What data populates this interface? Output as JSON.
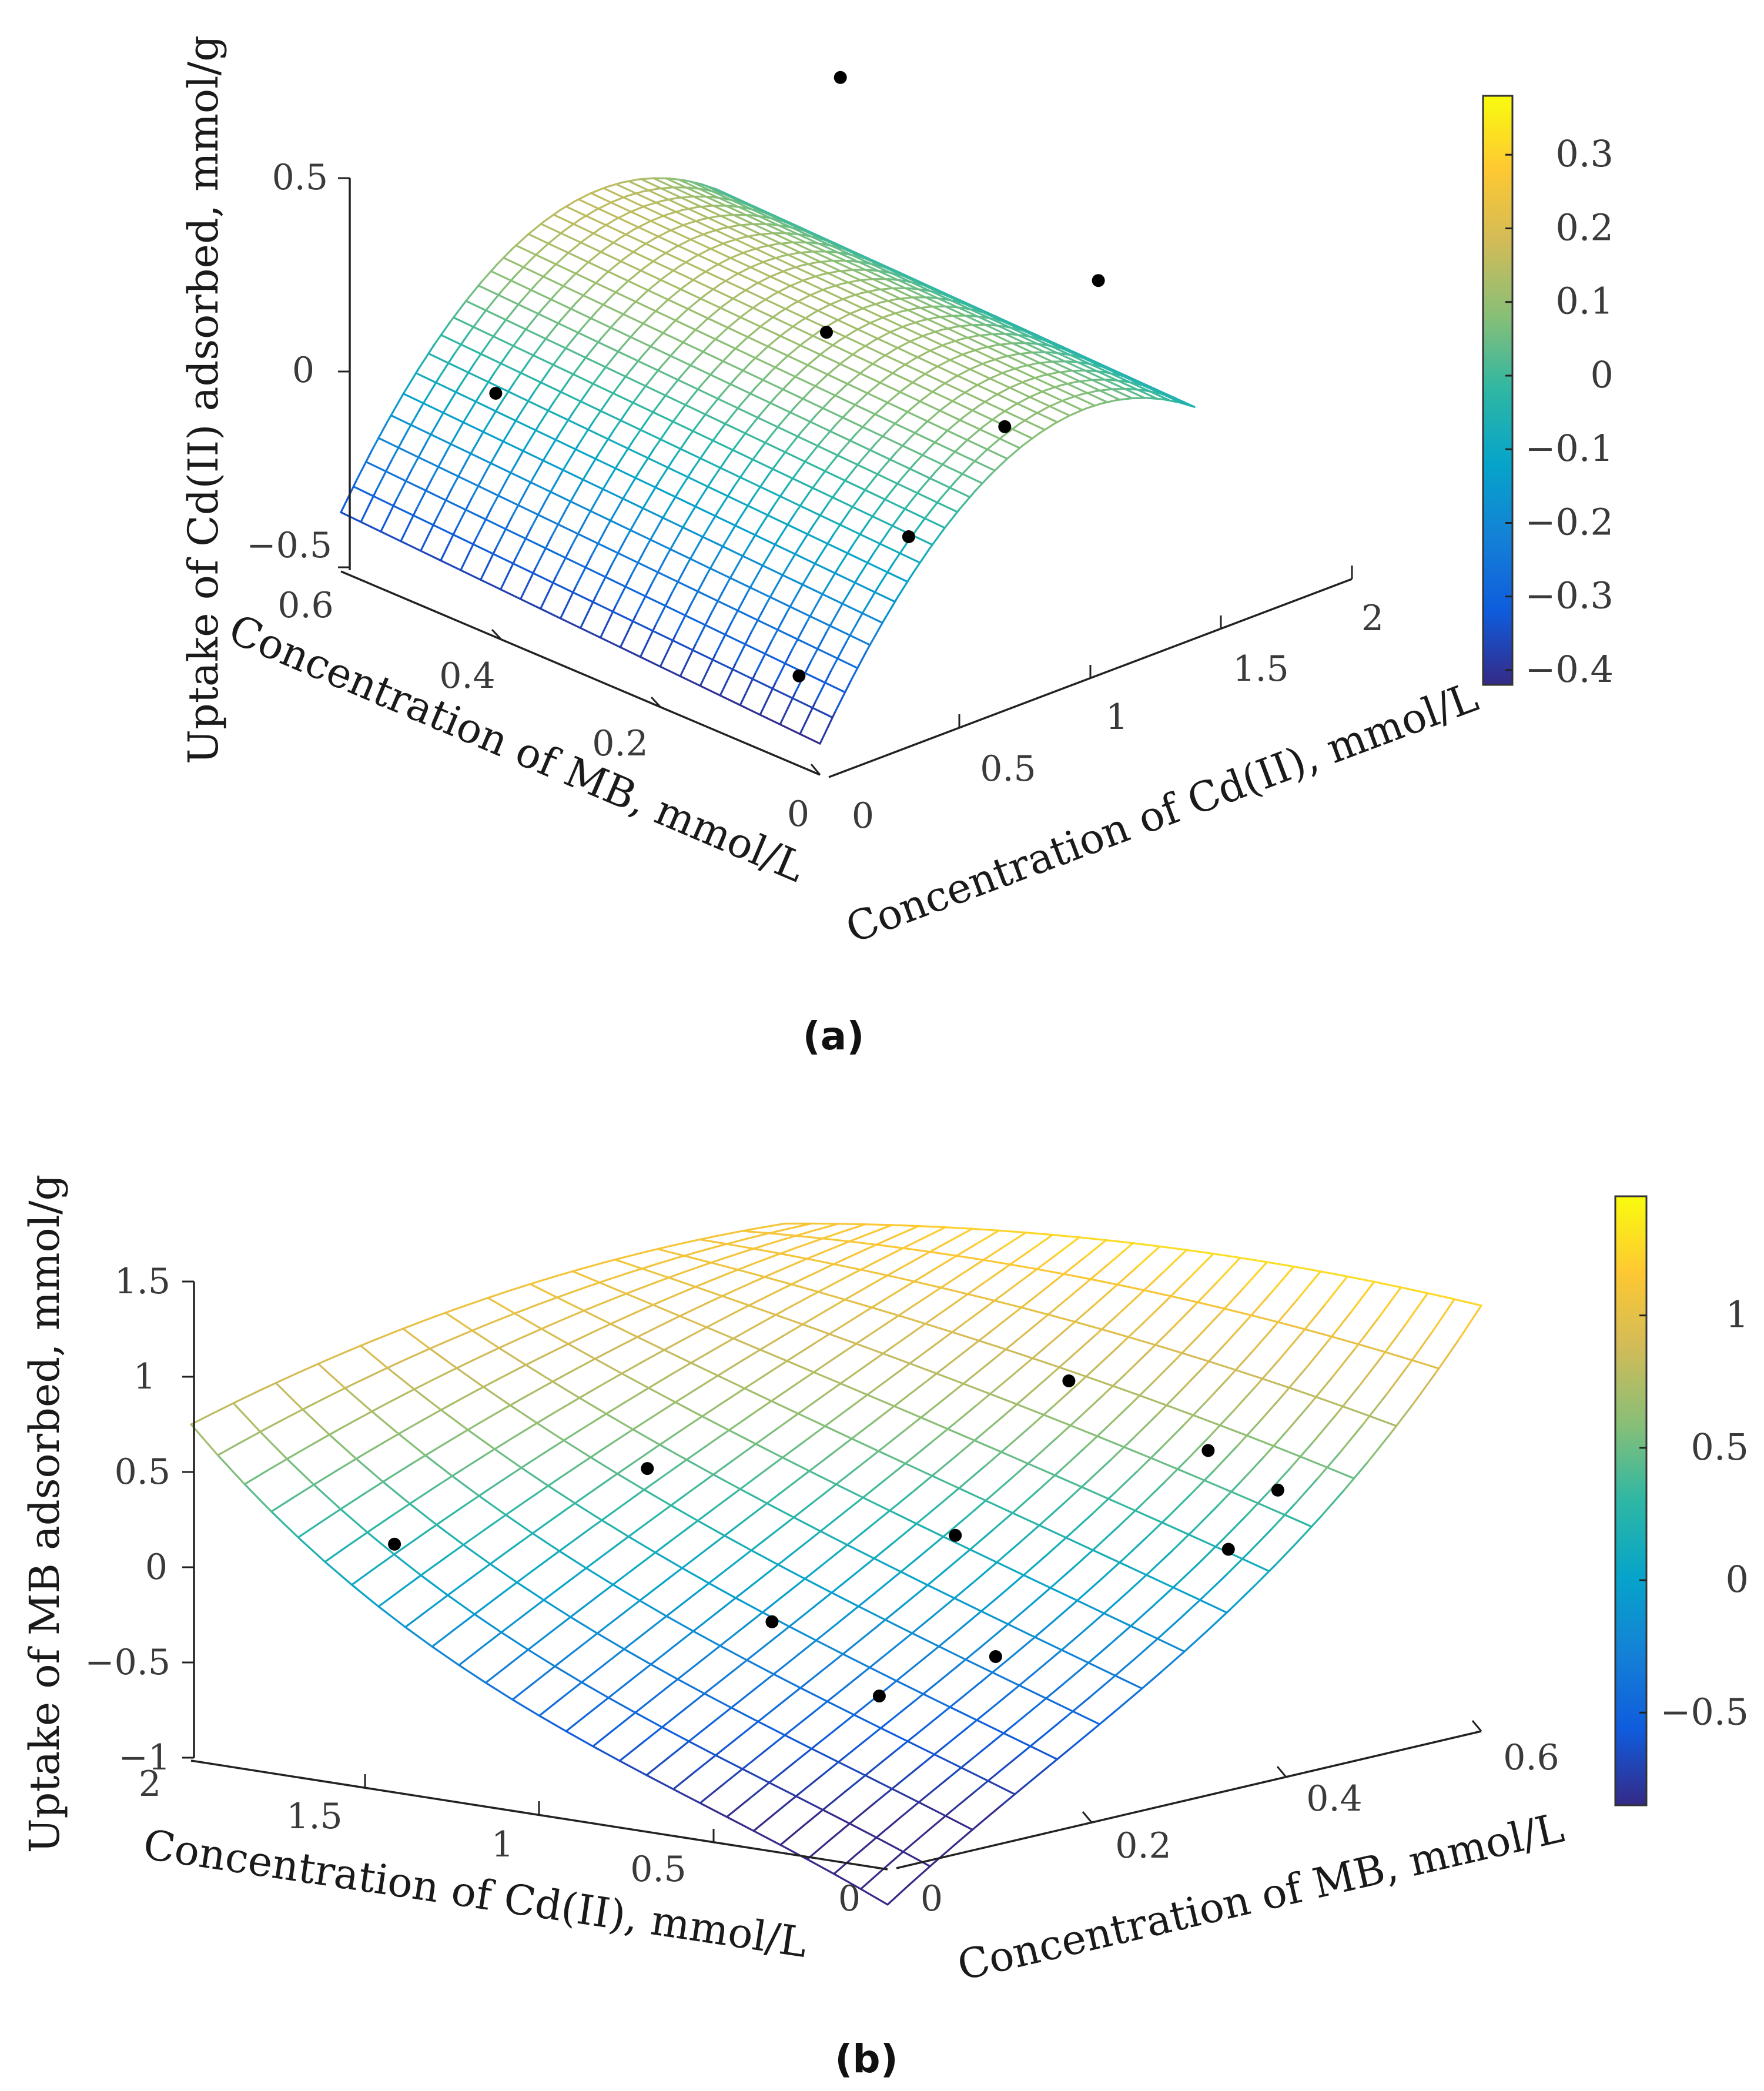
{
  "colors": {
    "parula": [
      "#352a87",
      "#0f5cdd",
      "#1481d6",
      "#06a4ca",
      "#2eb7a4",
      "#87bf77",
      "#d1bb59",
      "#fec832",
      "#f9fb0e"
    ]
  },
  "chart_data": [
    {
      "type": "surface",
      "panel_label": "(a)",
      "zlabel": "Uptake of Cd(II) adsorbed, mmol/g",
      "xlabel": "Concentration of MB, mmol/L",
      "ylabel": "Concentration of Cd(II), mmol/L",
      "xlim": [
        0,
        0.6
      ],
      "ylim": [
        0,
        2
      ],
      "zlim": [
        -0.5,
        0.5
      ],
      "x_ticks": [
        "0",
        "0.2",
        "0.4",
        "0.6"
      ],
      "y_ticks": [
        "0",
        "0.5",
        "1",
        "1.5",
        "2"
      ],
      "z_ticks": [
        "-0.5",
        "0",
        "0.5"
      ],
      "colorbar": {
        "range": [
          -0.42,
          0.38
        ],
        "ticks": [
          "-0.4",
          "-0.3",
          "-0.2",
          "-0.1",
          "0",
          "0.1",
          "0.2",
          "0.3"
        ],
        "tick_values": [
          -0.4,
          -0.3,
          -0.2,
          -0.1,
          0,
          0.1,
          0.2,
          0.3
        ]
      },
      "surface_model": "z = 0.78*y - 0.3*y^2 - 0.42 + 0.12*x",
      "points": [
        {
          "mb": 0.5,
          "cd": 0.4,
          "z": -0.05
        },
        {
          "mb": 0.35,
          "cd": 1.6,
          "z": 0.6
        },
        {
          "mb": 0.05,
          "cd": 1.7,
          "z": 0.3
        },
        {
          "mb": 0.05,
          "cd": 1.2,
          "z": 0.05
        },
        {
          "mb": 0.25,
          "cd": 1.1,
          "z": 0.15
        },
        {
          "mb": 0.1,
          "cd": 0.9,
          "z": -0.2
        },
        {
          "mb": 0.12,
          "cd": 0.4,
          "z": -0.45
        }
      ]
    },
    {
      "type": "surface",
      "panel_label": "(b)",
      "zlabel": "Uptake of MB adsorbed, mmol/g",
      "xlabel": "Concentration of Cd(II), mmol/L",
      "ylabel": "Concentration of MB, mmol/L",
      "xlim": [
        0,
        2
      ],
      "ylim": [
        0,
        0.6
      ],
      "zlim": [
        -1,
        1.5
      ],
      "x_ticks": [
        "0",
        "0.5",
        "1",
        "1.5",
        "2"
      ],
      "y_ticks": [
        "0",
        "0.2",
        "0.4",
        "0.6"
      ],
      "z_ticks": [
        "-1",
        "-0.5",
        "0",
        "0.5",
        "1",
        "1.5"
      ],
      "colorbar": {
        "range": [
          -0.85,
          1.45
        ],
        "ticks": [
          "-0.5",
          "0",
          "0.5",
          "1"
        ],
        "tick_values": [
          -0.5,
          0,
          0.5,
          1
        ]
      },
      "surface_model": "z = 0.15 + 0.9*u^3 + 0.35*(s-0.5) - 0.55*(s-0.5)^2 + 0.2*(w-0.5) - 0.5*(w-0.5)^2 + ... (cubic fit)",
      "points": [
        {
          "cd": 1.7,
          "mb": 0.1,
          "z": 0.1
        },
        {
          "cd": 1.4,
          "mb": 0.25,
          "z": 0.4
        },
        {
          "cd": 0.9,
          "mb": 0.5,
          "z": 0.7
        },
        {
          "cd": 0.8,
          "mb": 0.35,
          "z": 0.1
        },
        {
          "cd": 0.9,
          "mb": 0.2,
          "z": -0.2
        },
        {
          "cd": 0.5,
          "mb": 0.5,
          "z": 0.45
        },
        {
          "cd": 0.3,
          "mb": 0.5,
          "z": 0.3
        },
        {
          "cd": 0.3,
          "mb": 0.45,
          "z": 0.05
        },
        {
          "cd": 0.4,
          "mb": 0.25,
          "z": -0.3
        },
        {
          "cd": 0.45,
          "mb": 0.15,
          "z": -0.4
        }
      ]
    }
  ]
}
